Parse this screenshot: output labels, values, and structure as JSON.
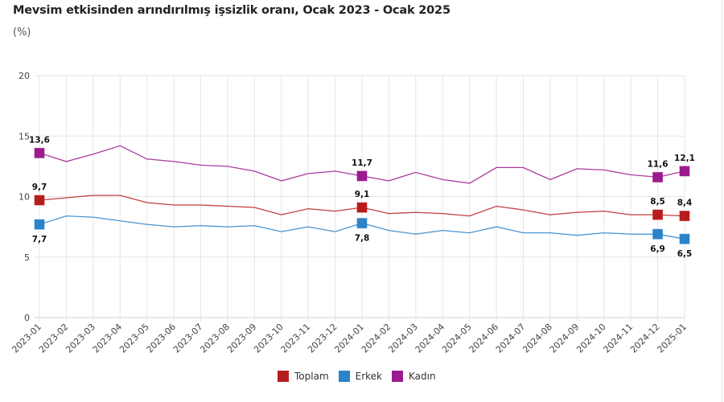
{
  "chart_data": {
    "type": "line",
    "title": "Mevsim etkisinden arındırılmış işsizlik oranı, Ocak 2023 - Ocak 2025",
    "subtitle": "(%)",
    "xlabel": "",
    "ylabel": "(%)",
    "ylim": [
      0,
      20
    ],
    "yticks": [
      "0",
      "5",
      "10",
      "15",
      "20"
    ],
    "ytick_values": [
      0,
      5,
      10,
      15,
      20
    ],
    "grid": true,
    "legend_position": "bottom",
    "x": [
      "2023-01",
      "2023-02",
      "2023-03",
      "2023-04",
      "2023-05",
      "2023-06",
      "2023-07",
      "2023-08",
      "2023-09",
      "2023-10",
      "2023-11",
      "2023-12",
      "2024-01",
      "2024-02",
      "2024-03",
      "2024-04",
      "2024-05",
      "2024-06",
      "2024-07",
      "2024-08",
      "2024-09",
      "2024-10",
      "2024-11",
      "2024-12",
      "2025-01"
    ],
    "series": [
      {
        "name": "Toplam",
        "color": "#B71C1C",
        "values": [
          9.7,
          9.9,
          10.1,
          10.1,
          9.5,
          9.3,
          9.3,
          9.2,
          9.1,
          8.5,
          9.0,
          8.8,
          9.1,
          8.6,
          8.7,
          8.6,
          8.4,
          9.2,
          8.9,
          8.5,
          8.7,
          8.8,
          8.5,
          8.5,
          8.4
        ],
        "labels": [
          {
            "index": 0,
            "text": "9,7",
            "pos": "above"
          },
          {
            "index": 12,
            "text": "9,1",
            "pos": "above"
          },
          {
            "index": 23,
            "text": "8,5",
            "pos": "above"
          },
          {
            "index": 24,
            "text": "8,4",
            "pos": "above"
          }
        ]
      },
      {
        "name": "Erkek",
        "color": "#2B83C9",
        "values": [
          7.7,
          8.4,
          8.3,
          8.0,
          7.7,
          7.5,
          7.6,
          7.5,
          7.6,
          7.1,
          7.5,
          7.1,
          7.8,
          7.2,
          6.9,
          7.2,
          7.0,
          7.5,
          7.0,
          7.0,
          6.8,
          7.0,
          6.9,
          6.9,
          6.5
        ],
        "labels": [
          {
            "index": 0,
            "text": "7,7",
            "pos": "below"
          },
          {
            "index": 12,
            "text": "7,8",
            "pos": "below"
          },
          {
            "index": 23,
            "text": "6,9",
            "pos": "below"
          },
          {
            "index": 24,
            "text": "6,5",
            "pos": "below"
          }
        ]
      },
      {
        "name": "Kadın",
        "color": "#9C1A8F",
        "values": [
          13.6,
          12.9,
          13.5,
          14.2,
          13.1,
          12.9,
          12.6,
          12.5,
          12.1,
          11.3,
          11.9,
          12.1,
          11.7,
          11.3,
          12.0,
          11.4,
          11.1,
          12.4,
          12.4,
          11.4,
          12.3,
          12.2,
          11.8,
          11.6,
          12.1
        ],
        "labels": [
          {
            "index": 0,
            "text": "13,6",
            "pos": "above"
          },
          {
            "index": 12,
            "text": "11,7",
            "pos": "above"
          },
          {
            "index": 23,
            "text": "11,6",
            "pos": "above"
          },
          {
            "index": 24,
            "text": "12,1",
            "pos": "above"
          }
        ]
      }
    ],
    "markers_at": [
      0,
      12,
      23,
      24
    ]
  }
}
